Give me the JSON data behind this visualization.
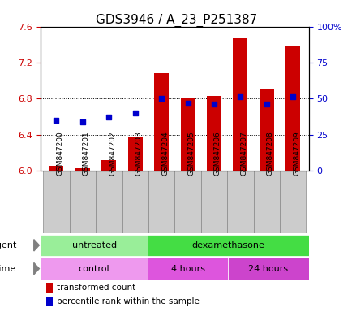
{
  "title": "GDS3946 / A_23_P251387",
  "samples": [
    "GSM847200",
    "GSM847201",
    "GSM847202",
    "GSM847203",
    "GSM847204",
    "GSM847205",
    "GSM847206",
    "GSM847207",
    "GSM847208",
    "GSM847209"
  ],
  "transformed_count": [
    6.05,
    6.03,
    6.12,
    6.37,
    7.08,
    6.8,
    6.83,
    7.47,
    6.9,
    7.38
  ],
  "percentile_rank": [
    35,
    34,
    37,
    40,
    50,
    47,
    46,
    51,
    46,
    51
  ],
  "ylim_left": [
    6.0,
    7.6
  ],
  "ylim_right": [
    0,
    100
  ],
  "yticks_left": [
    6.0,
    6.4,
    6.8,
    7.2,
    7.6
  ],
  "yticks_right": [
    0,
    25,
    50,
    75,
    100
  ],
  "bar_color": "#cc0000",
  "dot_color": "#0000cc",
  "bar_bottom": 6.0,
  "agent_groups": [
    {
      "label": "untreated",
      "start": 0,
      "end": 4,
      "color": "#99ee99"
    },
    {
      "label": "dexamethasone",
      "start": 4,
      "end": 10,
      "color": "#44dd44"
    }
  ],
  "time_groups": [
    {
      "label": "control",
      "start": 0,
      "end": 4,
      "color": "#ee99ee"
    },
    {
      "label": "4 hours",
      "start": 4,
      "end": 7,
      "color": "#dd44dd"
    },
    {
      "label": "24 hours",
      "start": 7,
      "end": 10,
      "color": "#cc33cc"
    }
  ],
  "legend_items": [
    {
      "color": "#cc0000",
      "label": "transformed count"
    },
    {
      "color": "#0000cc",
      "label": "percentile rank within the sample"
    }
  ],
  "tick_label_color_left": "#cc0000",
  "tick_label_color_right": "#0000cc",
  "bar_width": 0.55,
  "sample_box_color": "#cccccc",
  "sample_box_edge": "#888888"
}
